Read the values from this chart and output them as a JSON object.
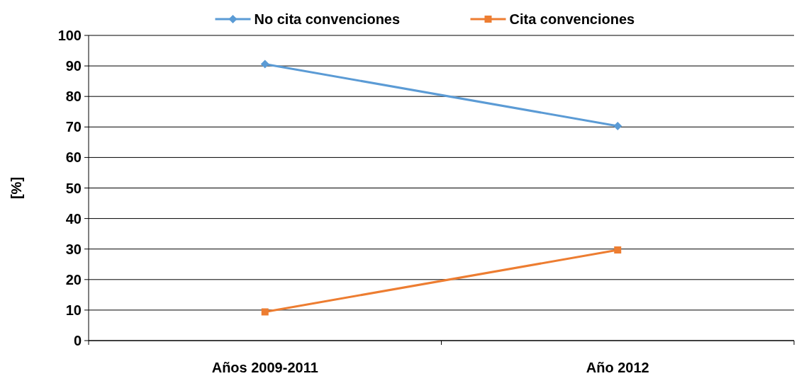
{
  "chart_data": {
    "type": "line",
    "ylabel": "[%]",
    "categories": [
      "Años 2009-2011",
      "Año 2012"
    ],
    "series": [
      {
        "name": "No cita convenciones",
        "color": "#5b9bd5",
        "marker": "diamond",
        "values": [
          90.6,
          70.3
        ]
      },
      {
        "name": "Cita convenciones",
        "color": "#ed7d31",
        "marker": "square",
        "values": [
          9.4,
          29.7
        ]
      }
    ],
    "ylim": [
      0,
      100
    ],
    "yticks": [
      0,
      10,
      20,
      30,
      40,
      50,
      60,
      70,
      80,
      90,
      100
    ],
    "grid": "y",
    "legend": "top",
    "line_style": "solid"
  }
}
